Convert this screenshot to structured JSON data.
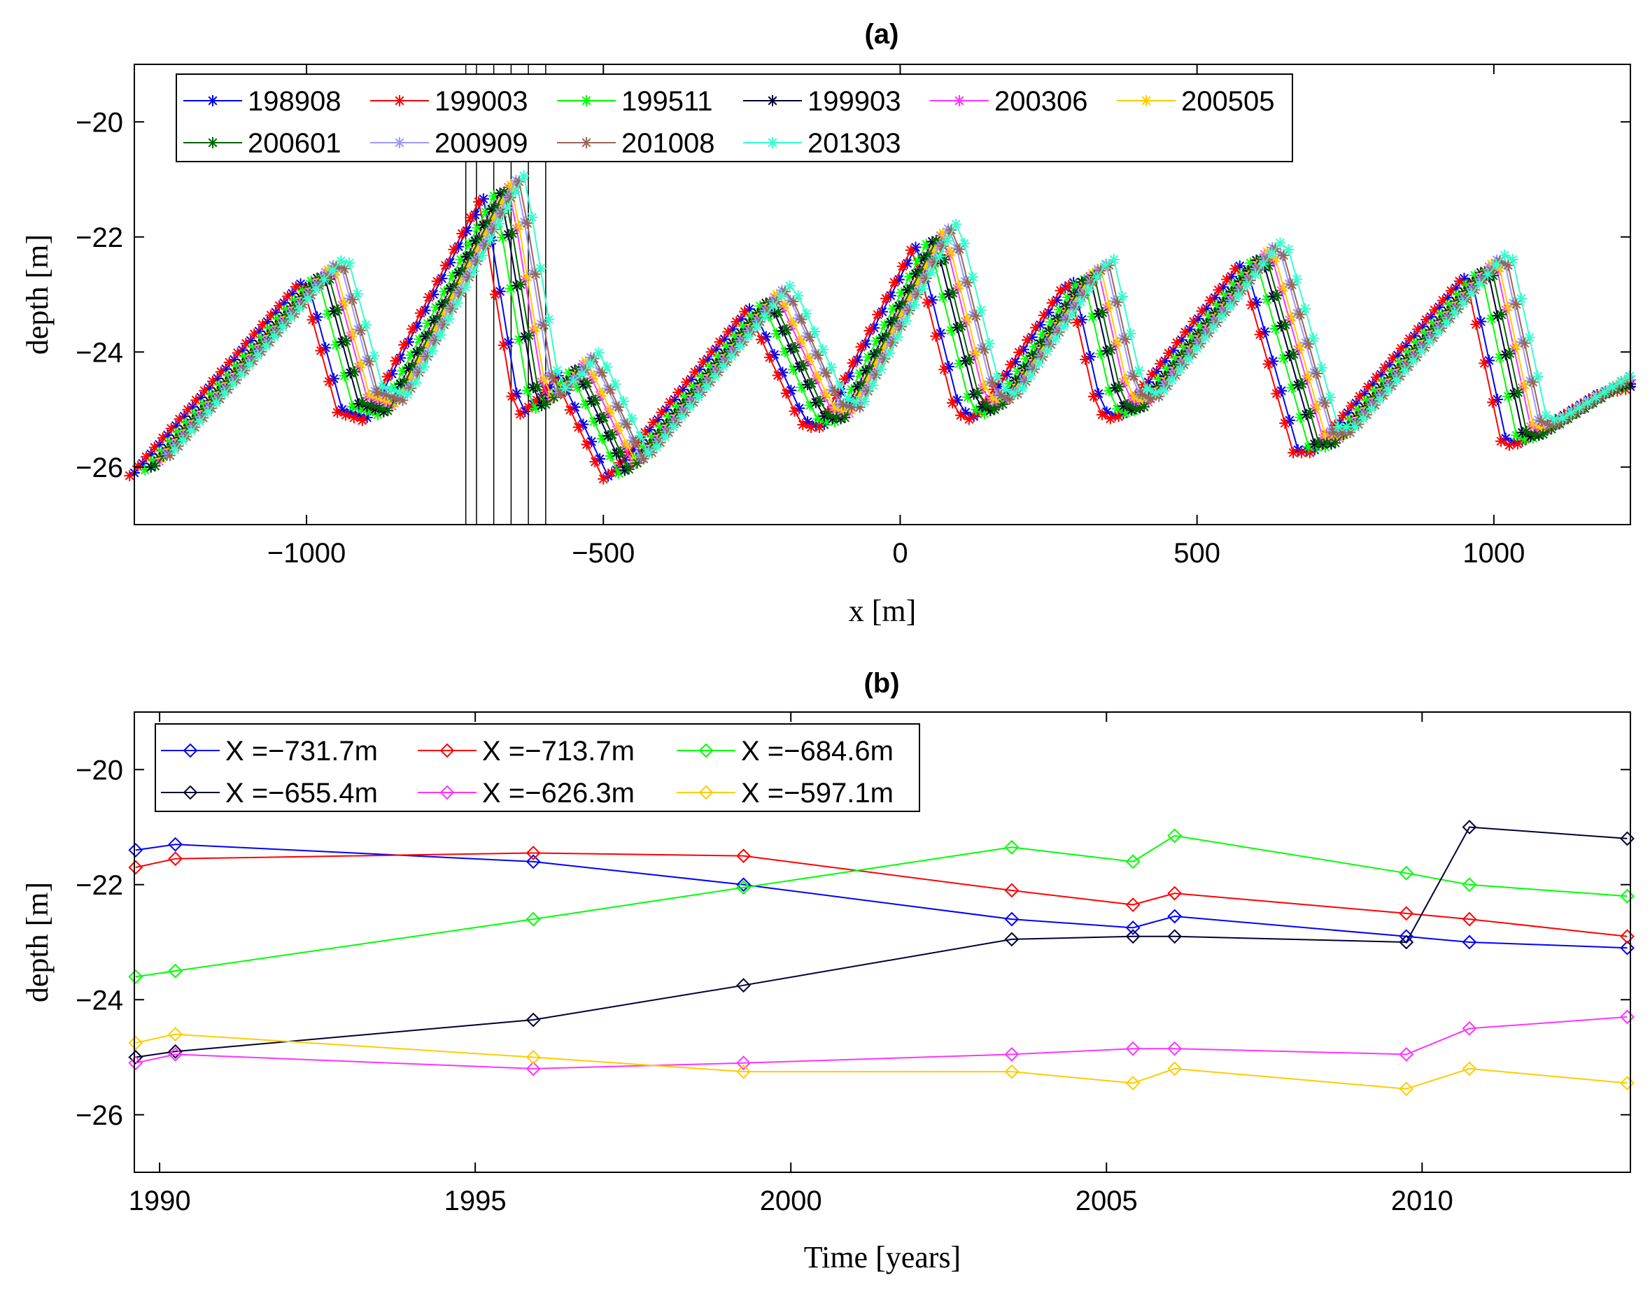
{
  "chart_data": [
    {
      "type": "line",
      "title": "(a)",
      "xlabel": "x [m]",
      "ylabel": "depth [m]",
      "xlim": [
        -1290,
        1230
      ],
      "ylim": [
        -27,
        -19
      ],
      "xticks": [
        -1000,
        -500,
        0,
        500,
        1000
      ],
      "xtick_labels": [
        "−1000",
        "−500",
        "0",
        "500",
        "1000"
      ],
      "yticks": [
        -20,
        -22,
        -24,
        -26
      ],
      "ytick_labels": [
        "−20",
        "−22",
        "−24",
        "−26"
      ],
      "marker": "asterisk",
      "legend_position": "top-left",
      "legend_columns": 6,
      "vertical_lines_x": [
        -731.7,
        -713.7,
        -684.6,
        -655.4,
        -626.3,
        -597.1
      ],
      "profile_points": [
        [
          -1290,
          -26.1
        ],
        [
          -1000,
          -22.7
        ],
        [
          -940,
          -25.0
        ],
        [
          -895,
          -25.15
        ],
        [
          -700,
          -21.3
        ],
        [
          -640,
          -25.1
        ],
        [
          -600,
          -24.75
        ],
        [
          -575,
          -24.4
        ],
        [
          -560,
          -24.7
        ],
        [
          -490,
          -26.2
        ],
        [
          -250,
          -23.2
        ],
        [
          -160,
          -25.2
        ],
        [
          -130,
          -25.3
        ],
        [
          30,
          -22.1
        ],
        [
          100,
          -25.0
        ],
        [
          130,
          -25.15
        ],
        [
          290,
          -22.7
        ],
        [
          340,
          -25.0
        ],
        [
          370,
          -25.15
        ],
        [
          580,
          -22.4
        ],
        [
          670,
          -25.7
        ],
        [
          700,
          -25.7
        ],
        [
          960,
          -22.6
        ],
        [
          1020,
          -25.5
        ],
        [
          1040,
          -25.6
        ],
        [
          1180,
          -24.7
        ],
        [
          1230,
          -24.6
        ]
      ],
      "series": [
        {
          "name": "198908",
          "color": "#0000ff",
          "dx": 0,
          "dy": 0
        },
        {
          "name": "199003",
          "color": "#ff0000",
          "dx": -8,
          "dy": -0.05
        },
        {
          "name": "199511",
          "color": "#00ff00",
          "dx": 18,
          "dy": 0.05
        },
        {
          "name": "199903",
          "color": "#000033",
          "dx": 28,
          "dy": 0.1
        },
        {
          "name": "200306",
          "color": "#ff33ff",
          "dx": 42,
          "dy": 0.2
        },
        {
          "name": "200505",
          "color": "#ffcc00",
          "dx": 46,
          "dy": 0.25
        },
        {
          "name": "200601",
          "color": "#006600",
          "dx": 35,
          "dy": 0.12
        },
        {
          "name": "200909",
          "color": "#9999ff",
          "dx": 55,
          "dy": 0.32
        },
        {
          "name": "201008",
          "color": "#996655",
          "dx": 60,
          "dy": 0.3
        },
        {
          "name": "201303",
          "color": "#33ffcc",
          "dx": 68,
          "dy": 0.4
        }
      ]
    },
    {
      "type": "line",
      "title": "(b)",
      "xlabel": "Time [years]",
      "ylabel": "depth [m]",
      "xlim": [
        1989.6,
        2013.3
      ],
      "ylim": [
        -27,
        -19
      ],
      "xticks": [
        1990,
        1995,
        2000,
        2005,
        2010
      ],
      "xtick_labels": [
        "1990",
        "1995",
        "2000",
        "2005",
        "2010"
      ],
      "yticks": [
        -20,
        -22,
        -24,
        -26
      ],
      "ytick_labels": [
        "−20",
        "−22",
        "−24",
        "−26"
      ],
      "marker": "diamond",
      "legend_position": "top-left",
      "legend_columns": 3,
      "x": [
        1989.62,
        1990.25,
        1995.92,
        1999.25,
        2003.5,
        2005.42,
        2006.08,
        2009.75,
        2010.75,
        2013.25
      ],
      "series": [
        {
          "name": "X =−731.7m",
          "color": "#0000ff",
          "values": [
            -21.4,
            -21.3,
            -21.6,
            -22.0,
            -22.6,
            -22.75,
            -22.55,
            -22.9,
            -23.0,
            -23.1
          ]
        },
        {
          "name": "X =−713.7m",
          "color": "#ff0000",
          "values": [
            -21.7,
            -21.55,
            -21.45,
            -21.5,
            -22.1,
            -22.35,
            -22.15,
            -22.5,
            -22.6,
            -22.9
          ]
        },
        {
          "name": "X =−684.6m",
          "color": "#00ff00",
          "values": [
            -23.6,
            -23.5,
            -22.6,
            -22.05,
            -21.35,
            -21.6,
            -21.15,
            -21.8,
            -22.0,
            -22.2
          ]
        },
        {
          "name": "X =−655.4m",
          "color": "#000033",
          "values": [
            -25.0,
            -24.9,
            -24.35,
            -23.75,
            -22.95,
            -22.9,
            -22.9,
            -23.0,
            -21.0,
            -21.2
          ]
        },
        {
          "name": "X =−626.3m",
          "color": "#ff33ff",
          "values": [
            -25.1,
            -24.95,
            -25.2,
            -25.1,
            -24.95,
            -24.85,
            -24.85,
            -24.95,
            -24.5,
            -24.3
          ]
        },
        {
          "name": "X =−597.1m",
          "color": "#ffcc00",
          "values": [
            -24.75,
            -24.6,
            -25.0,
            -25.25,
            -25.25,
            -25.45,
            -25.2,
            -25.55,
            -25.2,
            -25.45
          ]
        }
      ]
    }
  ]
}
